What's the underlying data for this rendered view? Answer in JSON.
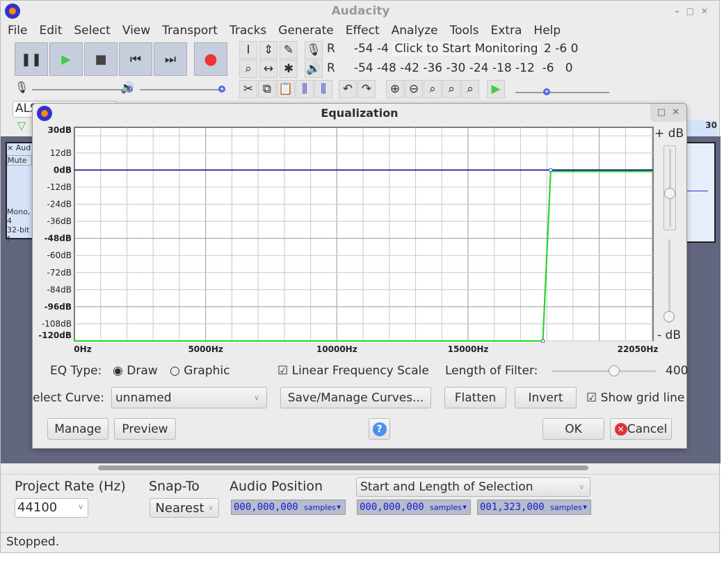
{
  "app": {
    "title": "Audacity",
    "menu": [
      "File",
      "Edit",
      "Select",
      "View",
      "Transport",
      "Tracks",
      "Generate",
      "Effect",
      "Analyze",
      "Tools",
      "Extra",
      "Help"
    ]
  },
  "transport": {
    "buttons": [
      "pause",
      "play",
      "stop",
      "skip-start",
      "skip-end",
      "record"
    ]
  },
  "meters": {
    "record_ticks": "-54  -4",
    "monitor_label": "Click to Start Monitoring",
    "record_ticks_right": "2   -6   0",
    "playback_ticks": "-54 -48 -42 -36 -30 -24 -18 -12  -6   0",
    "meter_letter": "R"
  },
  "track": {
    "close": "×",
    "name": "Aud",
    "mute": "Mute",
    "info1": "Mono, 4",
    "info2": "32-bit f",
    "ruler_label": "30",
    "device": "ALS"
  },
  "dialog": {
    "title": "Equalization",
    "plus_db": "+ dB",
    "minus_db": "- dB",
    "eq_type_label": "EQ Type:",
    "draw": "Draw",
    "graphic": "Graphic",
    "eq_type_selected": "Draw",
    "linear_label": "Linear Frequency Scale",
    "linear_checked": true,
    "filter_label": "Length of Filter:",
    "filter_value": "400",
    "filter_fraction": 0.6,
    "curve_label": "elect Curve:",
    "curve_value": "unnamed",
    "save_manage": "Save/Manage Curves...",
    "flatten": "Flatten",
    "invert": "Invert",
    "grid_label": "Show grid line",
    "grid_checked": true,
    "manage": "Manage",
    "preview": "Preview",
    "help": "?",
    "ok": "OK",
    "cancel": "Cancel",
    "gain_slider_fraction": 0.58,
    "range_slider_fraction": 0.92
  },
  "chart_data": {
    "type": "line",
    "xlim": [
      0,
      22050
    ],
    "ylim": [
      -120,
      30
    ],
    "x_ticks": [
      "0Hz",
      "5000Hz",
      "10000Hz",
      "15000Hz",
      "22050Hz"
    ],
    "y_ticks": [
      "30dB",
      "12dB",
      "0dB",
      "-12dB",
      "-24dB",
      "-36dB",
      "-48dB",
      "-60dB",
      "-72dB",
      "-84dB",
      "-96dB",
      "-108dB",
      "-120dB"
    ],
    "grid": true,
    "series": [
      {
        "color": "#6b6bdc",
        "x": [
          0,
          17850,
          18150,
          22050
        ],
        "y": [
          -120,
          -120,
          0,
          0
        ]
      },
      {
        "color": "#22dd22",
        "x": [
          0,
          17850,
          18150,
          22050
        ],
        "y": [
          -120,
          -120,
          -1,
          -1
        ]
      },
      {
        "color": "#000080",
        "x": [
          0,
          22050
        ],
        "y": [
          0,
          0
        ]
      }
    ]
  },
  "bottom": {
    "rate_label": "Project Rate (Hz)",
    "rate_value": "44100",
    "snap_label": "Snap-To",
    "snap_value": "Nearest",
    "pos_label": "Audio Position",
    "sel_label": "Start and Length of Selection",
    "pos_value": "000,000,000",
    "sel_start": "000,000,000",
    "sel_length": "001,323,000",
    "unit": "samples"
  },
  "status": "Stopped."
}
